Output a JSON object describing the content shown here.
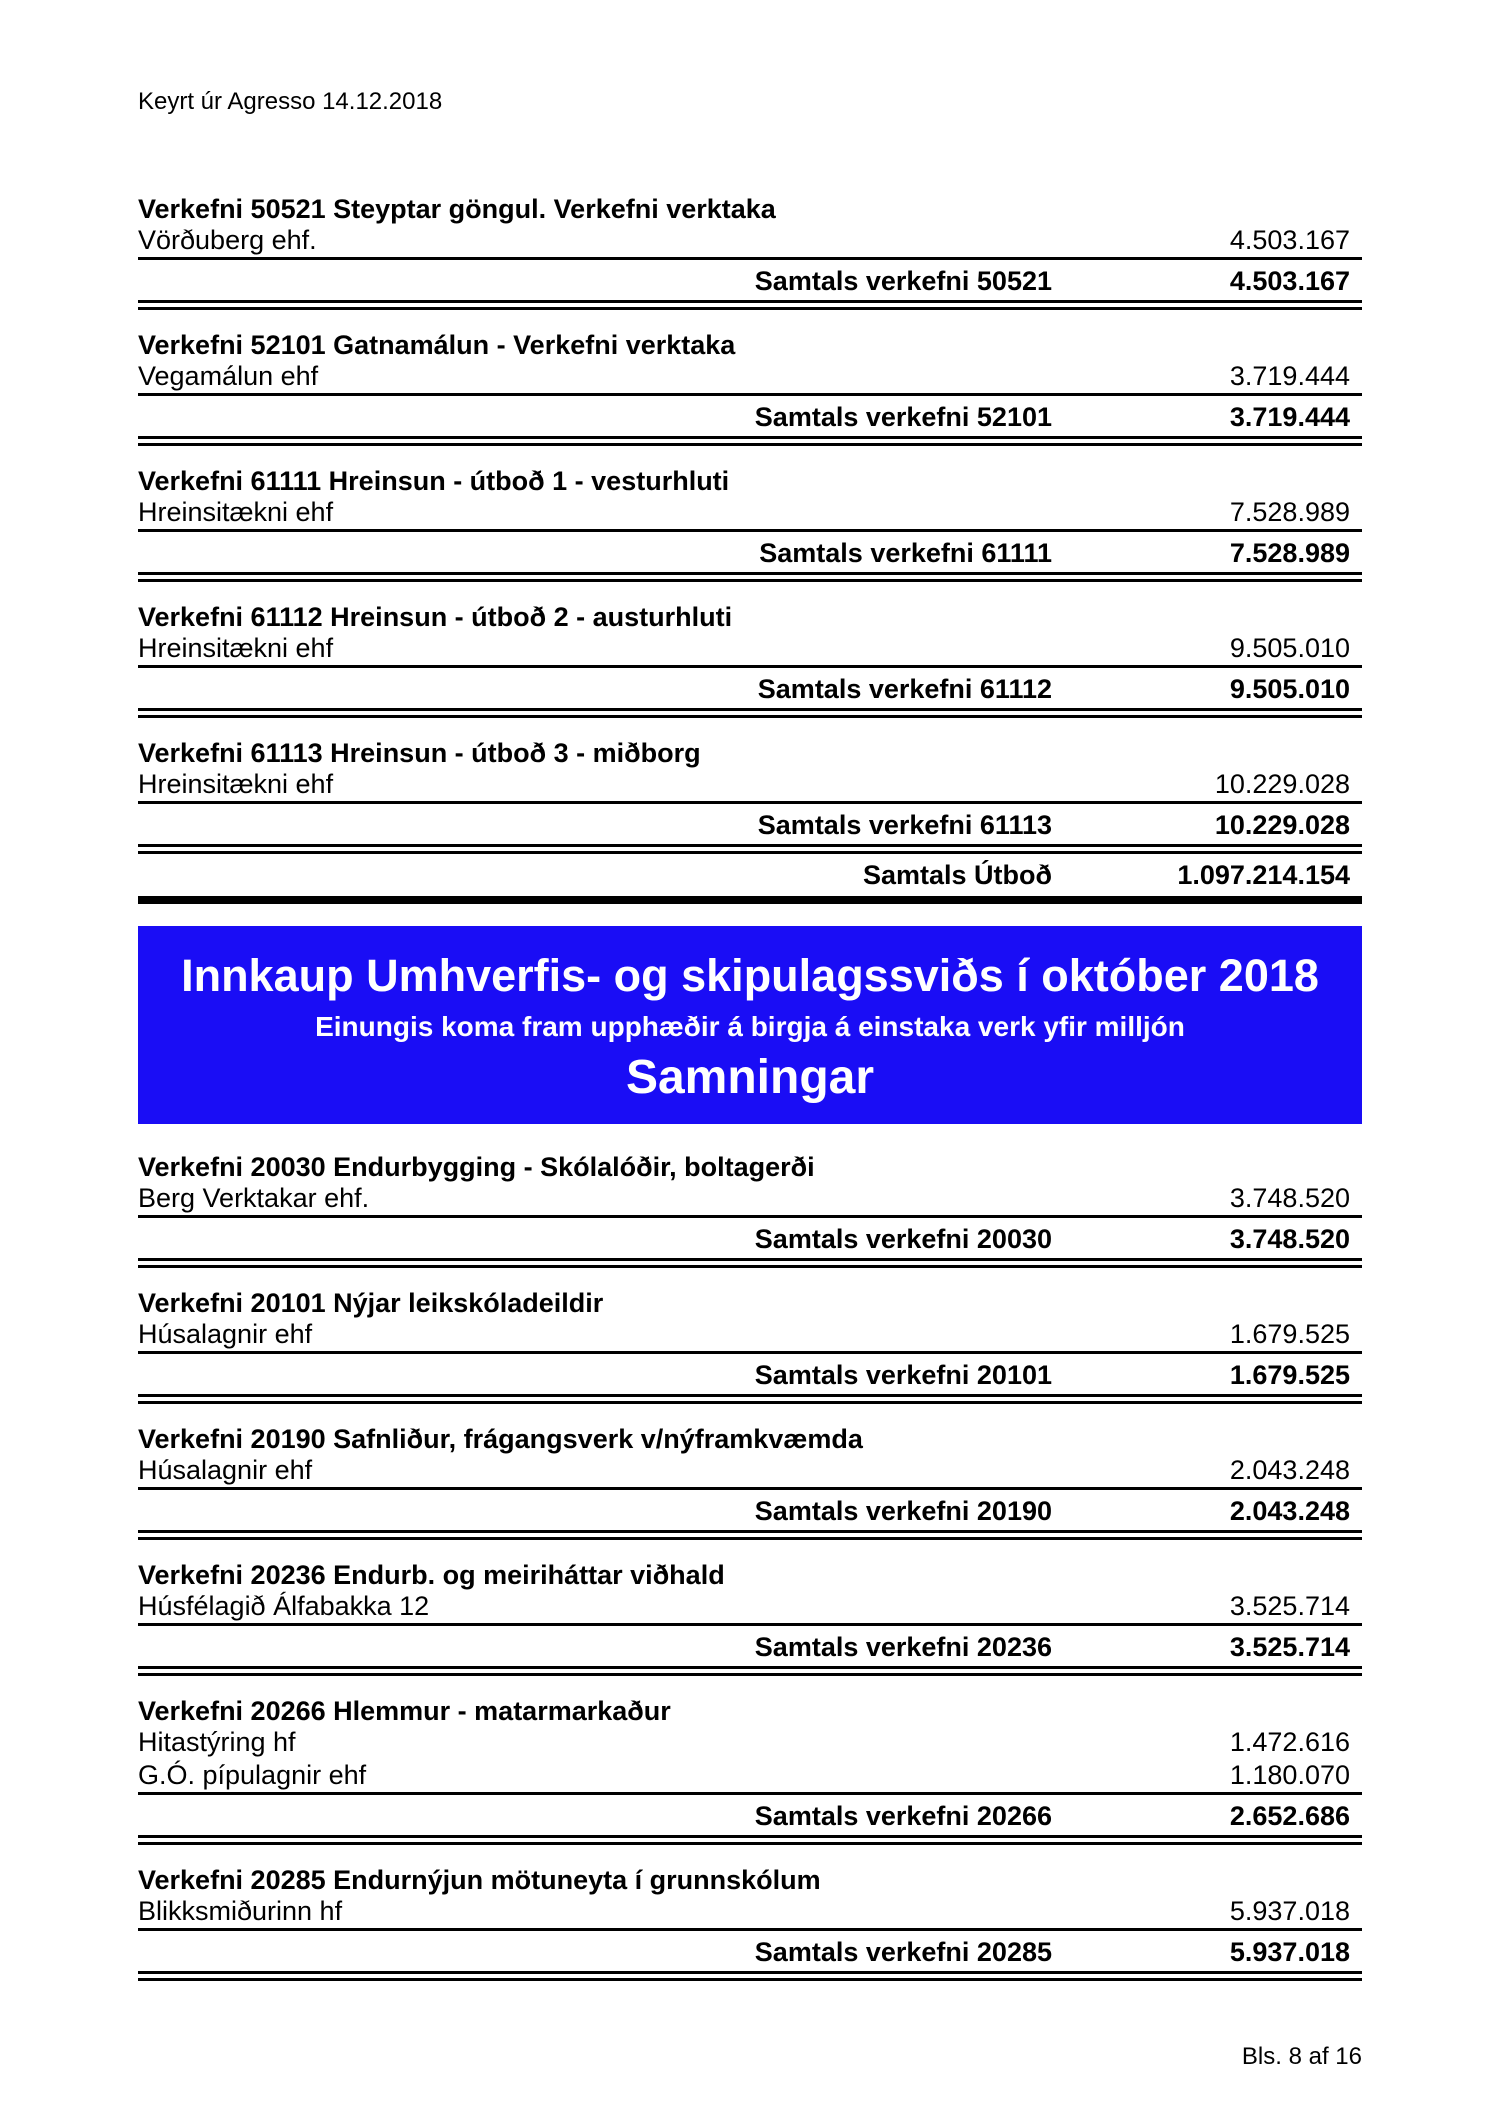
{
  "page": {
    "run_header": "Keyrt úr Agresso 14.12.2018",
    "footer": "Bls. 8 af 16"
  },
  "utbod": {
    "sections": [
      {
        "title": "Verkefni 50521 Steyptar göngul. Verkefni verktaka",
        "suppliers": [
          {
            "name": "Vörðuberg ehf.",
            "amount": "4.503.167"
          }
        ],
        "total_label": "Samtals verkefni 50521",
        "total_amount": "4.503.167"
      },
      {
        "title": "Verkefni 52101 Gatnamálun - Verkefni verktaka",
        "suppliers": [
          {
            "name": "Vegamálun ehf",
            "amount": "3.719.444"
          }
        ],
        "total_label": "Samtals verkefni 52101",
        "total_amount": "3.719.444"
      },
      {
        "title": "Verkefni 61111 Hreinsun - útboð 1 - vesturhluti",
        "suppliers": [
          {
            "name": "Hreinsitækni ehf",
            "amount": "7.528.989"
          }
        ],
        "total_label": "Samtals verkefni 61111",
        "total_amount": "7.528.989"
      },
      {
        "title": "Verkefni 61112 Hreinsun - útboð 2 - austurhluti",
        "suppliers": [
          {
            "name": "Hreinsitækni ehf",
            "amount": "9.505.010"
          }
        ],
        "total_label": "Samtals verkefni 61112",
        "total_amount": "9.505.010"
      },
      {
        "title": "Verkefni 61113 Hreinsun - útboð 3 - miðborg",
        "suppliers": [
          {
            "name": "Hreinsitækni ehf",
            "amount": "10.229.028"
          }
        ],
        "total_label": "Samtals verkefni 61113",
        "total_amount": "10.229.028"
      }
    ],
    "grand_total_label": "Samtals Útboð",
    "grand_total_amount": "1.097.214.154"
  },
  "banner": {
    "title": "Innkaup Umhverfis- og skipulagssviðs í október 2018",
    "subtitle": "Einungis koma fram upphæðir á birgja á einstaka verk yfir milljón",
    "section_title": "Samningar",
    "background_color": "#1a0df5",
    "text_color": "#ffffff"
  },
  "samningar": {
    "sections": [
      {
        "title": "Verkefni 20030 Endurbygging - Skólalóðir, boltagerði",
        "suppliers": [
          {
            "name": "Berg Verktakar ehf.",
            "amount": "3.748.520"
          }
        ],
        "total_label": "Samtals verkefni 20030",
        "total_amount": "3.748.520"
      },
      {
        "title": "Verkefni 20101 Nýjar leikskóladeildir",
        "suppliers": [
          {
            "name": "Húsalagnir ehf",
            "amount": "1.679.525"
          }
        ],
        "total_label": "Samtals verkefni 20101",
        "total_amount": "1.679.525"
      },
      {
        "title": "Verkefni 20190 Safnliður, frágangsverk v/nýframkvæmda",
        "suppliers": [
          {
            "name": "Húsalagnir ehf",
            "amount": "2.043.248"
          }
        ],
        "total_label": "Samtals verkefni 20190",
        "total_amount": "2.043.248"
      },
      {
        "title": "Verkefni 20236 Endurb. og meiriháttar viðhald",
        "suppliers": [
          {
            "name": "Húsfélagið Álfabakka 12",
            "amount": "3.525.714"
          }
        ],
        "total_label": "Samtals verkefni 20236",
        "total_amount": "3.525.714"
      },
      {
        "title": "Verkefni 20266 Hlemmur - matarmarkaður",
        "suppliers": [
          {
            "name": "Hitastýring hf",
            "amount": "1.472.616"
          },
          {
            "name": "G.Ó. pípulagnir ehf",
            "amount": "1.180.070"
          }
        ],
        "total_label": "Samtals verkefni 20266",
        "total_amount": "2.652.686"
      },
      {
        "title": "Verkefni 20285 Endurnýjun mötuneyta í grunnskólum",
        "suppliers": [
          {
            "name": "Blikksmiðurinn hf",
            "amount": "5.937.018"
          }
        ],
        "total_label": "Samtals verkefni 20285",
        "total_amount": "5.937.018"
      }
    ]
  }
}
